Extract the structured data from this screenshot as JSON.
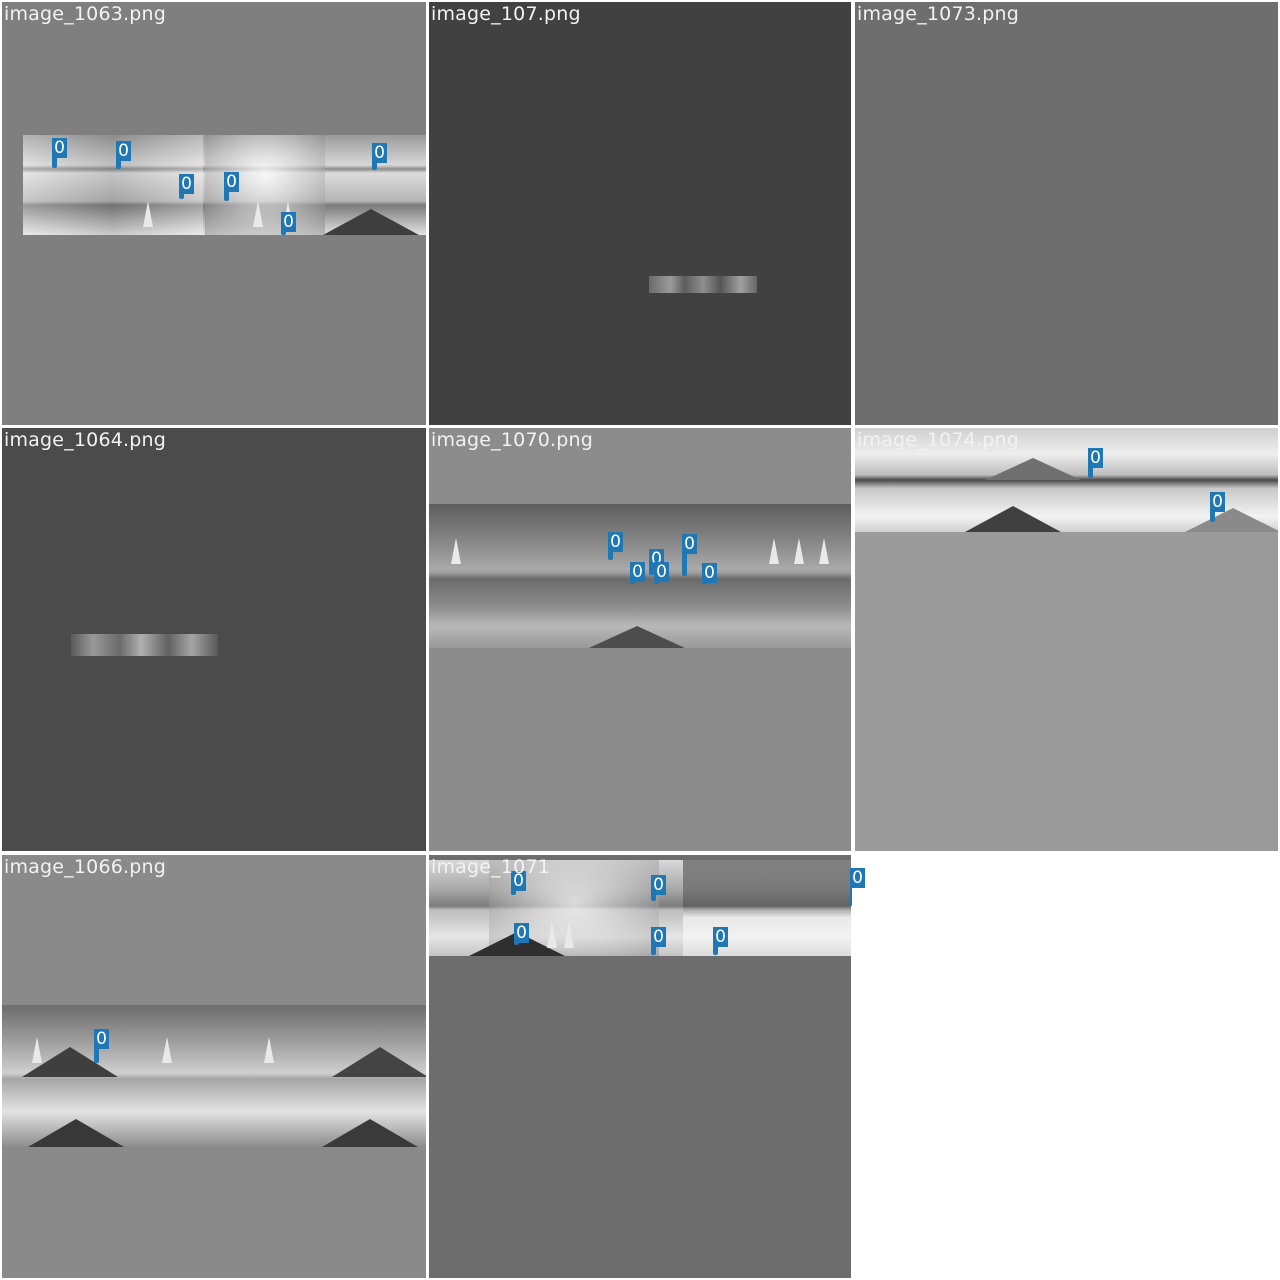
{
  "tiles": [
    {
      "filename": "image_1063.png",
      "background": "#7f7f7f"
    },
    {
      "filename": "image_107.png",
      "background": "#414141"
    },
    {
      "filename": "image_1073.png",
      "background": "#6e6e6e"
    },
    {
      "filename": "image_1064.png",
      "background": "#4b4b4b"
    },
    {
      "filename": "image_1070.png",
      "background": "#8c8c8c"
    },
    {
      "filename": "image_1074.png",
      "background": "#9a9a9a"
    },
    {
      "filename": "image_1066.png",
      "background": "#8a8a8a"
    },
    {
      "filename": "image_1071",
      "background": "#6d6d6d"
    }
  ],
  "class_label": "0",
  "box_color": "#1f77b4"
}
